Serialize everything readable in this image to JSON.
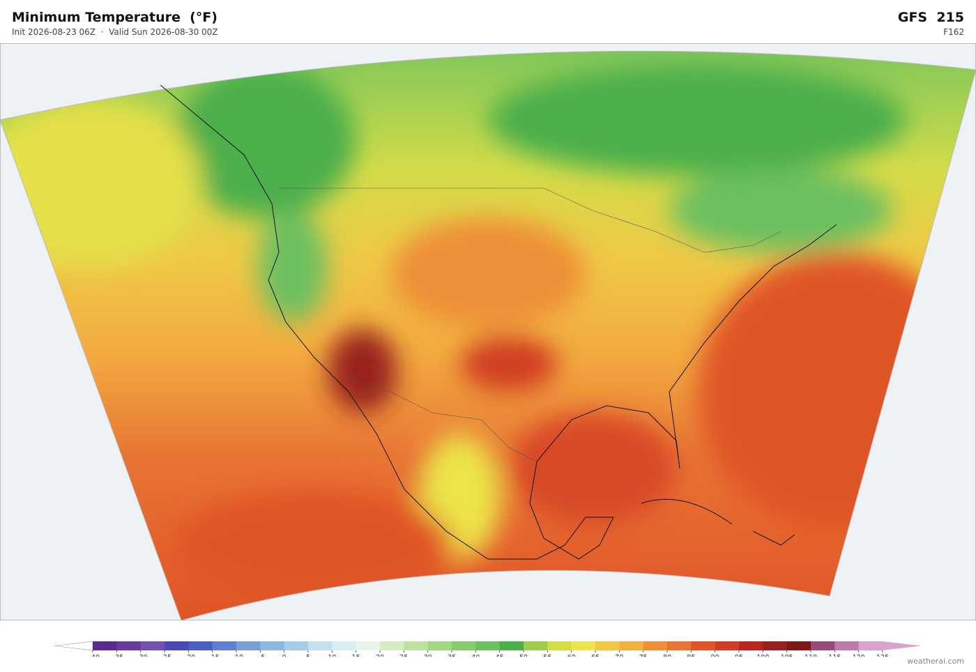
{
  "header": {
    "title": "Minimum Temperature  (°F)",
    "subtitle": "Init 2026-08-23 06Z  ·  Valid Sun 2026-08-30 00Z",
    "model": "GFS  215",
    "forecast_hour": "F162"
  },
  "colorbar": {
    "labels": [
      "−40",
      "−35",
      "−30",
      "−25",
      "−20",
      "−15",
      "−10",
      "−5",
      "0",
      "5",
      "10",
      "15",
      "20",
      "25",
      "30",
      "35",
      "40",
      "45",
      "50",
      "55",
      "60",
      "65",
      "70",
      "75",
      "80",
      "85",
      "90",
      "95",
      "100",
      "105",
      "110",
      "115",
      "120",
      "125"
    ],
    "colors": [
      "#5b2a8c",
      "#6a3a9c",
      "#7450b0",
      "#4a48b8",
      "#4a5ec8",
      "#5f80d0",
      "#7a9ed8",
      "#8fb8e0",
      "#a8cce8",
      "#c2e0ee",
      "#d8eef2",
      "#e6f4ea",
      "#d4ecc4",
      "#bce2a0",
      "#a2d882",
      "#86cc6a",
      "#6cc060",
      "#4caf4c",
      "#9ccc4c",
      "#d4dc48",
      "#ece44a",
      "#f0c846",
      "#f2b040",
      "#ee9038",
      "#e87434",
      "#e05428",
      "#d03c24",
      "#b82820",
      "#98201e",
      "#801818",
      "#9a4a78",
      "#c07aaa",
      "#d8a4cc"
    ],
    "under_color": "#ffffff",
    "over_color": "#d8a4cc"
  },
  "watermark": "weatherai.com"
}
